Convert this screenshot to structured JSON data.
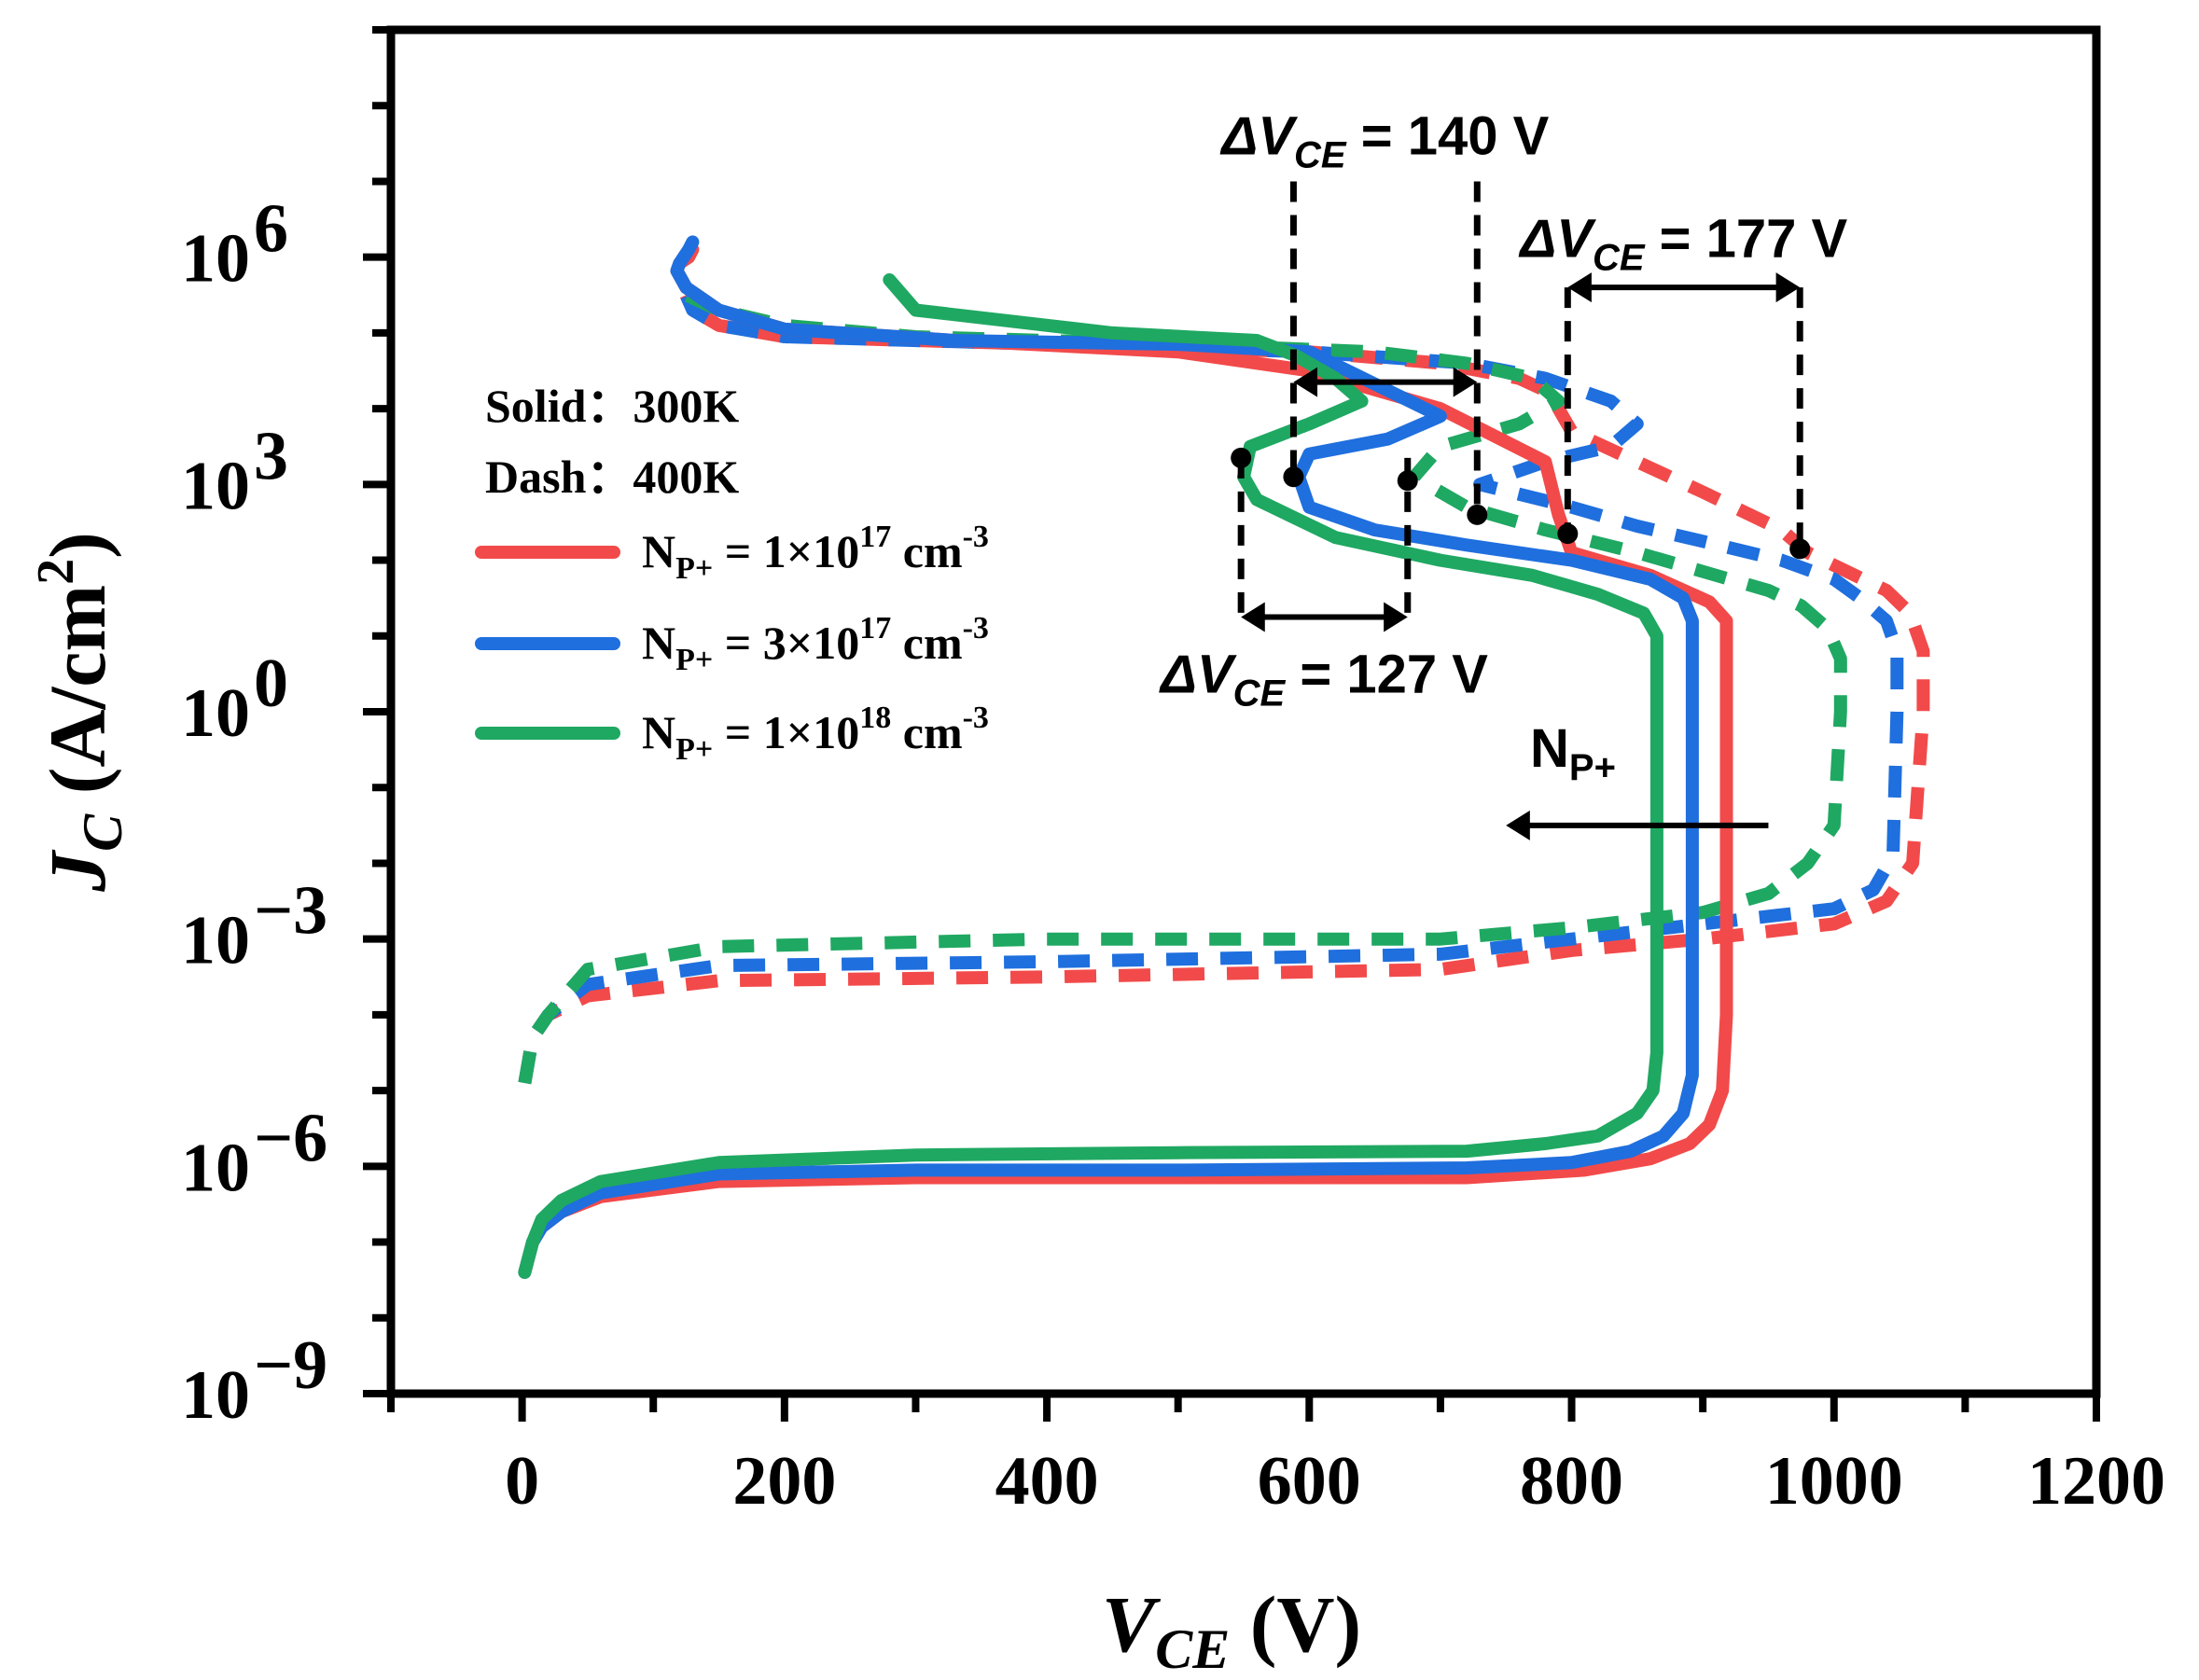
{
  "chart_data": {
    "type": "line",
    "title": "",
    "xlabel": {
      "main": "V",
      "sub": "CE",
      "unit": " (V)"
    },
    "ylabel": {
      "main": "J",
      "sub": "C",
      "unit": " (A/cm",
      "sup": "2",
      "close": ")"
    },
    "xlim": [
      -100,
      1200
    ],
    "ylim_log10": [
      -9,
      9
    ],
    "yscale": "log",
    "x_ticks": [
      0,
      200,
      400,
      600,
      800,
      1000,
      1200
    ],
    "x_tick_labels": [
      "0",
      "200",
      "400",
      "600",
      "800",
      "1000",
      "1200"
    ],
    "y_ticks_log10": [
      -9,
      -6,
      -3,
      0,
      3,
      6
    ],
    "y_tick_labels": [
      {
        "base": "10",
        "exp": "−9"
      },
      {
        "base": "10",
        "exp": "−6"
      },
      {
        "base": "10",
        "exp": "−3"
      },
      {
        "base": "10",
        "exp": "0"
      },
      {
        "base": "10",
        "exp": "3"
      },
      {
        "base": "10",
        "exp": "6"
      }
    ],
    "legend": {
      "style_notes": [
        "Solid：300K",
        "Dash：400K"
      ],
      "entries": [
        {
          "series": "N_P+ = 1×10^17 cm^-3",
          "label": "N",
          "sub": "P+",
          "text": " = 1×10",
          "sup": "17",
          "unit": " cm",
          "unit_sup": "-3",
          "color": "#f24a4a"
        },
        {
          "series": "N_P+ = 3×10^17 cm^-3",
          "label": "N",
          "sub": "P+",
          "text": " = 3×10",
          "sup": "17",
          "unit": " cm",
          "unit_sup": "-3",
          "color": "#1f6fde"
        },
        {
          "series": "N_P+ = 1×10^18 cm^-3",
          "label": "N",
          "sub": "P+",
          "text": " = 1×10",
          "sup": "18",
          "unit": " cm",
          "unit_sup": "-3",
          "color": "#1fa862"
        }
      ]
    },
    "series": [
      {
        "name": "N_P+ = 1×10^17 cm^-3 (300K)",
        "color": "#f24a4a",
        "dash": false,
        "x": [
          2,
          8,
          15,
          30,
          60,
          150,
          300,
          500,
          720,
          810,
          860,
          890,
          905,
          915,
          918,
          918,
          918,
          905,
          860,
          800,
          790,
          780,
          700,
          600,
          500,
          330,
          200,
          150,
          125,
          118,
          120,
          127,
          130
        ],
        "y": [
          -7.4,
          -7.0,
          -6.8,
          -6.6,
          -6.4,
          -6.2,
          -6.15,
          -6.15,
          -6.15,
          -6.05,
          -5.9,
          -5.7,
          -5.45,
          -5.0,
          -4.0,
          0.0,
          1.2,
          1.45,
          1.8,
          2.1,
          2.6,
          3.3,
          4.0,
          4.5,
          4.75,
          4.9,
          5.05,
          5.3,
          5.6,
          5.82,
          5.92,
          6.0,
          6.1
        ]
      },
      {
        "name": "N_P+ = 3×10^17 cm^-3 (300K)",
        "color": "#1f6fde",
        "dash": false,
        "x": [
          2,
          8,
          15,
          30,
          60,
          150,
          300,
          500,
          720,
          800,
          845,
          870,
          885,
          892,
          892,
          892,
          885,
          860,
          800,
          720,
          650,
          600,
          592,
          600,
          660,
          700,
          600,
          500,
          330,
          200,
          150,
          125,
          118,
          120,
          127,
          130
        ],
        "y": [
          -7.4,
          -7.0,
          -6.8,
          -6.6,
          -6.35,
          -6.1,
          -6.05,
          -6.05,
          -6.02,
          -5.95,
          -5.8,
          -5.6,
          -5.3,
          -4.8,
          -4.0,
          1.2,
          1.5,
          1.75,
          2.0,
          2.2,
          2.4,
          2.7,
          3.1,
          3.4,
          3.6,
          3.9,
          4.75,
          4.85,
          4.9,
          5.05,
          5.3,
          5.6,
          5.82,
          5.92,
          6.1,
          6.2
        ]
      },
      {
        "name": "N_P+ = 1×10^18 cm^-3 (300K)",
        "color": "#1fa862",
        "dash": false,
        "x": [
          2,
          8,
          15,
          30,
          60,
          150,
          300,
          500,
          720,
          780,
          820,
          850,
          862,
          865,
          865,
          865,
          855,
          820,
          770,
          700,
          620,
          560,
          550,
          555,
          600,
          640,
          620,
          590,
          560,
          450,
          300,
          280
        ],
        "y": [
          -7.4,
          -7.0,
          -6.7,
          -6.45,
          -6.2,
          -5.95,
          -5.85,
          -5.82,
          -5.8,
          -5.7,
          -5.6,
          -5.3,
          -5.0,
          -4.5,
          -4.0,
          1.0,
          1.3,
          1.55,
          1.8,
          2.0,
          2.3,
          2.8,
          3.1,
          3.5,
          3.8,
          4.1,
          4.4,
          4.7,
          4.9,
          5.0,
          5.3,
          5.7
        ]
      },
      {
        "name": "N_P+ = 1×10^17 cm^-3 (400K)",
        "color": "#f24a4a",
        "dash": true,
        "x": [
          2,
          8,
          20,
          50,
          150,
          400,
          700,
          800,
          900,
          1000,
          1040,
          1060,
          1068,
          1068,
          1058,
          1040,
          1010,
          980,
          960,
          900,
          850,
          800,
          790,
          785,
          760,
          700,
          600,
          400,
          200,
          150,
          130,
          125
        ],
        "y": [
          -4.9,
          -4.3,
          -4.0,
          -3.75,
          -3.55,
          -3.5,
          -3.4,
          -3.15,
          -3.0,
          -2.8,
          -2.5,
          -2.0,
          0.0,
          0.8,
          1.3,
          1.6,
          1.85,
          2.1,
          2.4,
          2.9,
          3.3,
          3.7,
          4.0,
          4.2,
          4.4,
          4.6,
          4.75,
          4.85,
          4.95,
          5.1,
          5.3,
          5.5
        ]
      },
      {
        "name": "N_P+ = 3×10^17 cm^-3 (400K)",
        "color": "#1f6fde",
        "dash": true,
        "x": [
          2,
          8,
          20,
          50,
          150,
          400,
          700,
          800,
          900,
          1000,
          1030,
          1045,
          1048,
          1048,
          1040,
          1020,
          1000,
          960,
          900,
          850,
          800,
          730,
          780,
          830,
          850,
          830,
          780,
          720,
          600,
          400,
          200,
          150,
          130,
          125
        ],
        "y": [
          -4.9,
          -4.3,
          -4.0,
          -3.6,
          -3.35,
          -3.3,
          -3.2,
          -3.0,
          -2.8,
          -2.6,
          -2.35,
          -1.9,
          0.0,
          0.8,
          1.2,
          1.5,
          1.75,
          2.0,
          2.25,
          2.45,
          2.7,
          3.0,
          3.3,
          3.5,
          3.8,
          4.1,
          4.4,
          4.6,
          4.75,
          4.85,
          4.95,
          5.1,
          5.3,
          5.5
        ]
      },
      {
        "name": "N_P+ = 1×10^18 cm^-3 (400K)",
        "color": "#1fa862",
        "dash": true,
        "x": [
          2,
          8,
          20,
          50,
          150,
          400,
          700,
          800,
          900,
          950,
          980,
          1000,
          1005,
          1005,
          995,
          975,
          950,
          900,
          850,
          780,
          720,
          680,
          700,
          760,
          790,
          770,
          720,
          650,
          500,
          300,
          200,
          150,
          125
        ],
        "y": [
          -4.9,
          -4.3,
          -4.0,
          -3.4,
          -3.1,
          -3.0,
          -3.0,
          -2.85,
          -2.65,
          -2.4,
          -2.0,
          -1.5,
          0.0,
          0.7,
          1.1,
          1.4,
          1.6,
          1.85,
          2.1,
          2.4,
          2.7,
          3.1,
          3.5,
          3.8,
          4.1,
          4.4,
          4.6,
          4.75,
          4.85,
          4.95,
          5.1,
          5.3,
          5.5
        ]
      }
    ],
    "annotations": [
      {
        "prefix": "ΔV",
        "sub": "CE",
        "text": " = 140 V",
        "x1": 588,
        "x2": 728,
        "y_log10": 4.35,
        "markers": [
          {
            "x": 588,
            "y_log10": 3.1
          },
          {
            "x": 728,
            "y_log10": 2.6
          }
        ],
        "vline_top_log10": 7.0,
        "label_pos_log10": 7.6
      },
      {
        "prefix": "ΔV",
        "sub": "CE",
        "text": " = 177 V",
        "x1": 797,
        "x2": 974,
        "y_log10": 5.6,
        "markers": [
          {
            "x": 797,
            "y_log10": 2.35
          },
          {
            "x": 974,
            "y_log10": 2.15
          }
        ],
        "vline_top_log10": 5.6,
        "label_pos_log10": 6.25
      },
      {
        "prefix": "ΔV",
        "sub": "CE",
        "text": " = 127 V",
        "x1": 548,
        "x2": 675,
        "y_log10": 1.25,
        "markers": [
          {
            "x": 548,
            "y_log10": 3.35
          },
          {
            "x": 675,
            "y_log10": 3.05
          }
        ],
        "vline_top_log10": 3.35,
        "label_pos_log10": 0.5
      }
    ],
    "arrow": {
      "label": "N",
      "sub": "P+",
      "from_x": 950,
      "to_x": 750,
      "y_log10": -1.5
    }
  }
}
